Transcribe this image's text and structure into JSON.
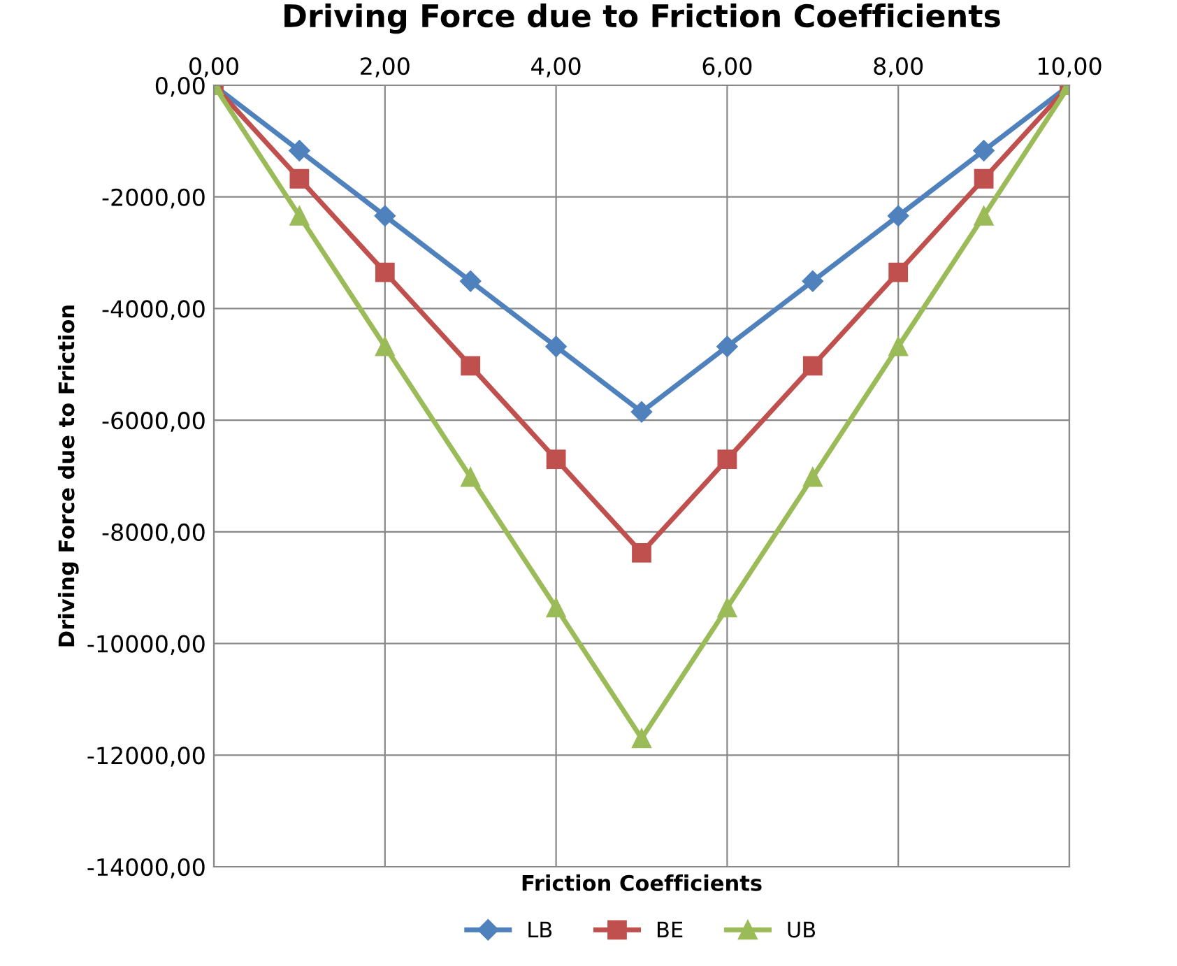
{
  "chart_data": {
    "type": "line",
    "title": "Driving Force due to Friction Coefficients",
    "xlabel": "Friction Coefficients",
    "ylabel": "Driving Force due to Friction",
    "x": [
      0,
      1,
      2,
      3,
      4,
      5,
      6,
      7,
      8,
      9,
      10
    ],
    "series": [
      {
        "name": "LB",
        "color": "#4f81bd",
        "marker": "diamond",
        "values": [
          0,
          -1170,
          -2340,
          -3510,
          -4680,
          -5850,
          -4680,
          -3510,
          -2340,
          -1170,
          0
        ]
      },
      {
        "name": "BE",
        "color": "#c0504d",
        "marker": "square",
        "values": [
          0,
          -1675,
          -3350,
          -5025,
          -6700,
          -8375,
          -6700,
          -5025,
          -3350,
          -1675,
          0
        ]
      },
      {
        "name": "UB",
        "color": "#9bbb59",
        "marker": "triangle",
        "values": [
          0,
          -2340,
          -4680,
          -7020,
          -9360,
          -11700,
          -9360,
          -7020,
          -4680,
          -2340,
          0
        ]
      }
    ],
    "xlim": [
      0,
      10
    ],
    "xticks": [
      {
        "value": 0,
        "label": "0,00"
      },
      {
        "value": 2,
        "label": "2,00"
      },
      {
        "value": 4,
        "label": "4,00"
      },
      {
        "value": 6,
        "label": "6,00"
      },
      {
        "value": 8,
        "label": "8,00"
      },
      {
        "value": 10,
        "label": "10,00"
      }
    ],
    "ylim": [
      -14000,
      0
    ],
    "yticks": [
      {
        "value": 0,
        "label": "0,00"
      },
      {
        "value": -2000,
        "label": "-2000,00"
      },
      {
        "value": -4000,
        "label": "-4000,00"
      },
      {
        "value": -6000,
        "label": "-6000,00"
      },
      {
        "value": -8000,
        "label": "-8000,00"
      },
      {
        "value": -10000,
        "label": "-10000,00"
      },
      {
        "value": -12000,
        "label": "-12000,00"
      },
      {
        "value": -14000,
        "label": "-14000,00"
      }
    ],
    "grid": true,
    "legend": "bottom",
    "line_style": "solid"
  }
}
